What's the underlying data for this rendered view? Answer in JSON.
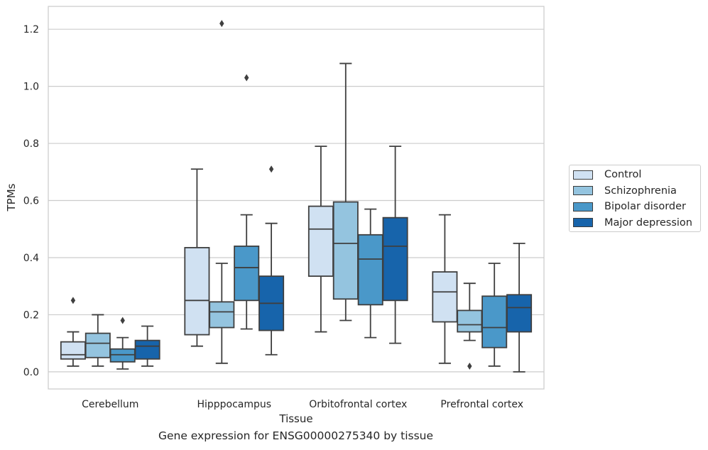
{
  "caption": "Gene expression for ENSG00000275340 by tissue",
  "chart_data": {
    "type": "box",
    "xlabel": "Tissue",
    "ylabel": "TPMs",
    "ylim": [
      -0.06,
      1.28
    ],
    "yticks": [
      0.0,
      0.2,
      0.4,
      0.6,
      0.8,
      1.0,
      1.2
    ],
    "ytick_labels": [
      "0.0",
      "0.2",
      "0.4",
      "0.6",
      "0.8",
      "1.0",
      "1.2"
    ],
    "grid": "horizontal",
    "legend_position": "right",
    "categories": [
      "Cerebellum",
      "Hipppocampus",
      "Orbitofrontal cortex",
      "Prefrontal cortex"
    ],
    "series": [
      {
        "name": "Control",
        "color": "#d0e1f2",
        "boxes": [
          {
            "whislo": 0.02,
            "q1": 0.045,
            "med": 0.06,
            "q3": 0.105,
            "whishi": 0.14,
            "fliers": [
              0.25
            ]
          },
          {
            "whislo": 0.09,
            "q1": 0.13,
            "med": 0.25,
            "q3": 0.435,
            "whishi": 0.71,
            "fliers": []
          },
          {
            "whislo": 0.14,
            "q1": 0.335,
            "med": 0.5,
            "q3": 0.58,
            "whishi": 0.79,
            "fliers": []
          },
          {
            "whislo": 0.03,
            "q1": 0.175,
            "med": 0.28,
            "q3": 0.35,
            "whishi": 0.55,
            "fliers": []
          }
        ]
      },
      {
        "name": "Schizophrenia",
        "color": "#94c4df",
        "boxes": [
          {
            "whislo": 0.02,
            "q1": 0.05,
            "med": 0.1,
            "q3": 0.135,
            "whishi": 0.2,
            "fliers": []
          },
          {
            "whislo": 0.03,
            "q1": 0.155,
            "med": 0.21,
            "q3": 0.245,
            "whishi": 0.38,
            "fliers": [
              1.22
            ]
          },
          {
            "whislo": 0.18,
            "q1": 0.255,
            "med": 0.45,
            "q3": 0.595,
            "whishi": 1.08,
            "fliers": []
          },
          {
            "whislo": 0.11,
            "q1": 0.14,
            "med": 0.165,
            "q3": 0.215,
            "whishi": 0.31,
            "fliers": [
              0.02
            ]
          }
        ]
      },
      {
        "name": "Bipolar disorder",
        "color": "#4a98c9",
        "boxes": [
          {
            "whislo": 0.01,
            "q1": 0.035,
            "med": 0.06,
            "q3": 0.08,
            "whishi": 0.12,
            "fliers": [
              0.18
            ]
          },
          {
            "whislo": 0.15,
            "q1": 0.25,
            "med": 0.365,
            "q3": 0.44,
            "whishi": 0.55,
            "fliers": [
              1.03
            ]
          },
          {
            "whislo": 0.12,
            "q1": 0.235,
            "med": 0.395,
            "q3": 0.48,
            "whishi": 0.57,
            "fliers": []
          },
          {
            "whislo": 0.02,
            "q1": 0.085,
            "med": 0.155,
            "q3": 0.265,
            "whishi": 0.38,
            "fliers": []
          }
        ]
      },
      {
        "name": "Major depression",
        "color": "#1764ab",
        "boxes": [
          {
            "whislo": 0.02,
            "q1": 0.045,
            "med": 0.09,
            "q3": 0.11,
            "whishi": 0.16,
            "fliers": []
          },
          {
            "whislo": 0.06,
            "q1": 0.145,
            "med": 0.24,
            "q3": 0.335,
            "whishi": 0.52,
            "fliers": [
              0.71
            ]
          },
          {
            "whislo": 0.1,
            "q1": 0.25,
            "med": 0.44,
            "q3": 0.54,
            "whishi": 0.79,
            "fliers": []
          },
          {
            "whislo": 0.0,
            "q1": 0.14,
            "med": 0.225,
            "q3": 0.27,
            "whishi": 0.45,
            "fliers": []
          }
        ]
      }
    ]
  }
}
